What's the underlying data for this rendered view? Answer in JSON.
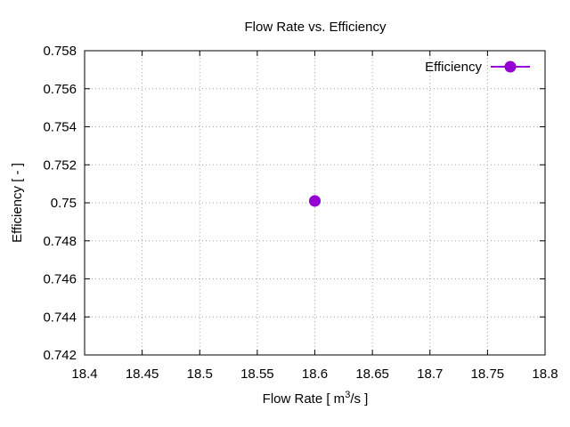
{
  "chart_data": {
    "type": "scatter",
    "title": "Flow Rate  vs. Efficiency",
    "xlabel": {
      "prefix": "Flow Rate [ m",
      "sup": "3",
      "suffix": "/s ]"
    },
    "ylabel": "Efficiency [ - ]",
    "xlim": [
      18.4,
      18.8
    ],
    "ylim": [
      0.742,
      0.758
    ],
    "x_ticks": [
      18.4,
      18.45,
      18.5,
      18.55,
      18.6,
      18.65,
      18.7,
      18.75,
      18.8
    ],
    "x_tick_labels": [
      "18.4",
      "18.45",
      "18.5",
      "18.55",
      "18.6",
      "18.65",
      "18.7",
      "18.75",
      "18.8"
    ],
    "y_ticks": [
      0.742,
      0.744,
      0.746,
      0.748,
      0.75,
      0.752,
      0.754,
      0.756,
      0.758
    ],
    "y_tick_labels": [
      "0.742",
      "0.744",
      "0.746",
      "0.748",
      "0.75",
      "0.752",
      "0.754",
      "0.756",
      "0.758"
    ],
    "grid": true,
    "legend_position": "top-right",
    "series": [
      {
        "name": "Efficiency",
        "color": "#9400d3",
        "x": [
          18.6
        ],
        "y": [
          0.7501
        ]
      }
    ]
  }
}
